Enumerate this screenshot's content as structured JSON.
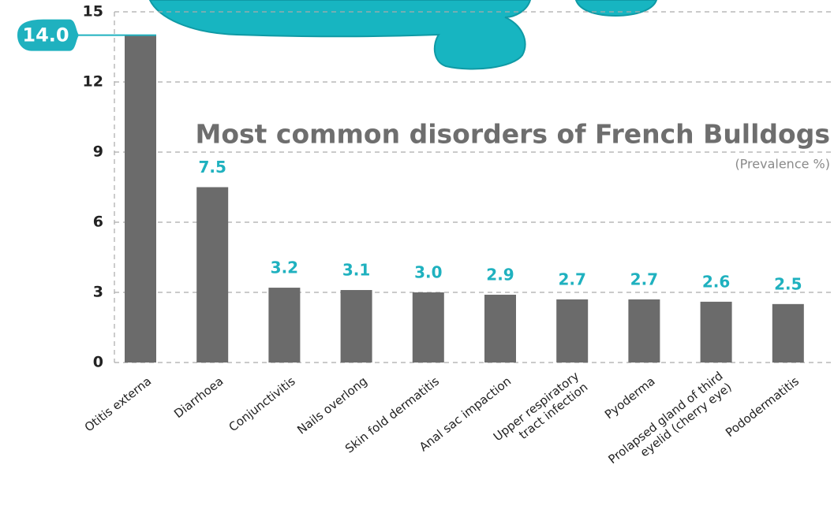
{
  "chart_data": {
    "type": "bar",
    "title": "Most common disorders of French Bulldogs",
    "subtitle": "(Prevalence %)",
    "categories": [
      "Otitis externa",
      "Diarrhoea",
      "Conjunctivitis",
      "Nails overlong",
      "Skin fold dermatitis",
      "Anal sac impaction",
      "Upper respiratory\ntract infection",
      "Pyoderma",
      "Prolapsed gland of third\neyelid (cherry eye)",
      "Pododermatitis"
    ],
    "values": [
      14.0,
      7.5,
      3.2,
      3.1,
      3.0,
      2.9,
      2.7,
      2.7,
      2.6,
      2.5
    ],
    "value_labels": [
      "14.0",
      "7.5",
      "3.2",
      "3.1",
      "3.0",
      "2.9",
      "2.7",
      "2.7",
      "2.6",
      "2.5"
    ],
    "color": "#6b6b6b",
    "label_color": "#1fb1bf",
    "ylim": [
      0,
      15
    ],
    "yticks": [
      0,
      3,
      6,
      9,
      12,
      15
    ],
    "grid": true
  }
}
